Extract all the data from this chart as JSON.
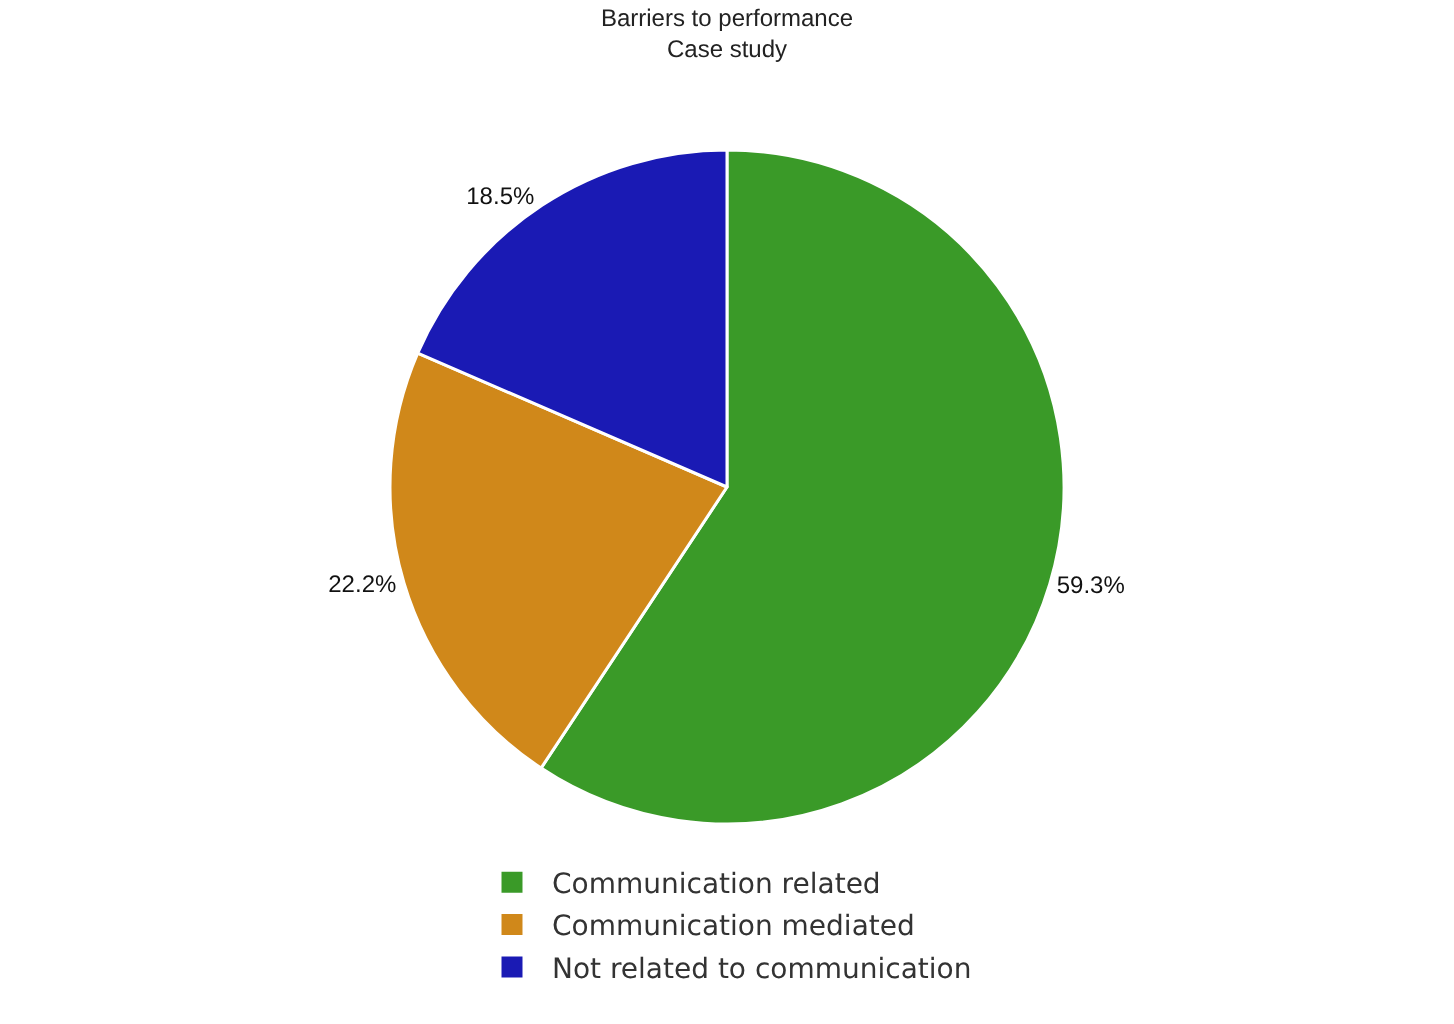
{
  "chart_data": {
    "type": "pie",
    "title": "Barriers to performance",
    "subtitle": "Case study",
    "categories": [
      "Communication related",
      "Communication mediated",
      "Not related to communication"
    ],
    "values": [
      59.3,
      22.2,
      18.5
    ],
    "value_labels": [
      "59.3%",
      "22.2%",
      "18.5%"
    ],
    "colors": [
      "#3a9a28",
      "#d0881a",
      "#1a1ab4"
    ],
    "legend": "bottom"
  }
}
